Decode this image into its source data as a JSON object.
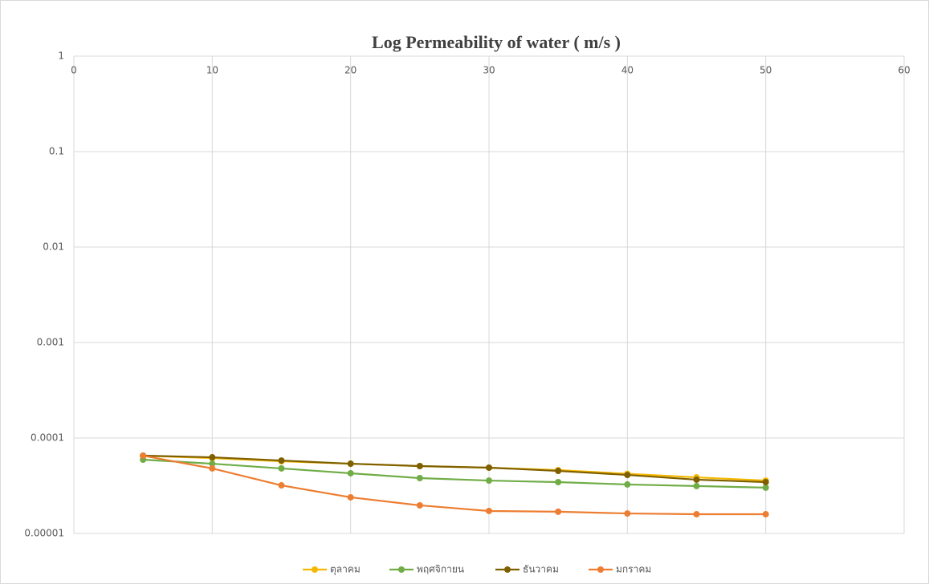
{
  "chart_data": {
    "type": "line",
    "title": "Log Permeability of water ( m/s )",
    "x": [
      5,
      10,
      15,
      20,
      25,
      30,
      35,
      40,
      45,
      50
    ],
    "series": [
      {
        "name": "ตุลาคม",
        "color": "#f5b800",
        "values": [
          6.53e-05,
          6.16e-05,
          5.7e-05,
          5.38e-05,
          5.08e-05,
          4.89e-05,
          4.61e-05,
          4.22e-05,
          3.87e-05,
          3.58e-05
        ]
      },
      {
        "name": "พฤศจิกายน",
        "color": "#70ad47",
        "values": [
          5.93e-05,
          5.38e-05,
          4.8e-05,
          4.27e-05,
          3.8e-05,
          3.58e-05,
          3.45e-05,
          3.26e-05,
          3.14e-05,
          3.02e-05
        ]
      },
      {
        "name": "ธันวาคม",
        "color": "#7f6000",
        "values": [
          6.53e-05,
          6.28e-05,
          5.81e-05,
          5.38e-05,
          5.08e-05,
          4.89e-05,
          4.52e-05,
          4.1e-05,
          3.66e-05,
          3.45e-05
        ]
      },
      {
        "name": "มกราคม",
        "color": "#ed7d31",
        "values": [
          6.53e-05,
          4.8e-05,
          3.19e-05,
          2.39e-05,
          1.97e-05,
          1.72e-05,
          1.69e-05,
          1.62e-05,
          1.59e-05,
          1.59e-05
        ]
      }
    ],
    "xlim": [
      0,
      60
    ],
    "xticks": [
      0,
      10,
      20,
      30,
      40,
      50,
      60
    ],
    "ylim": [
      1e-05,
      1
    ],
    "yticks": [
      1e-05,
      0.0001,
      0.001,
      0.01,
      0.1,
      1
    ],
    "ylog": true,
    "grid": true,
    "legend": "bottom"
  }
}
